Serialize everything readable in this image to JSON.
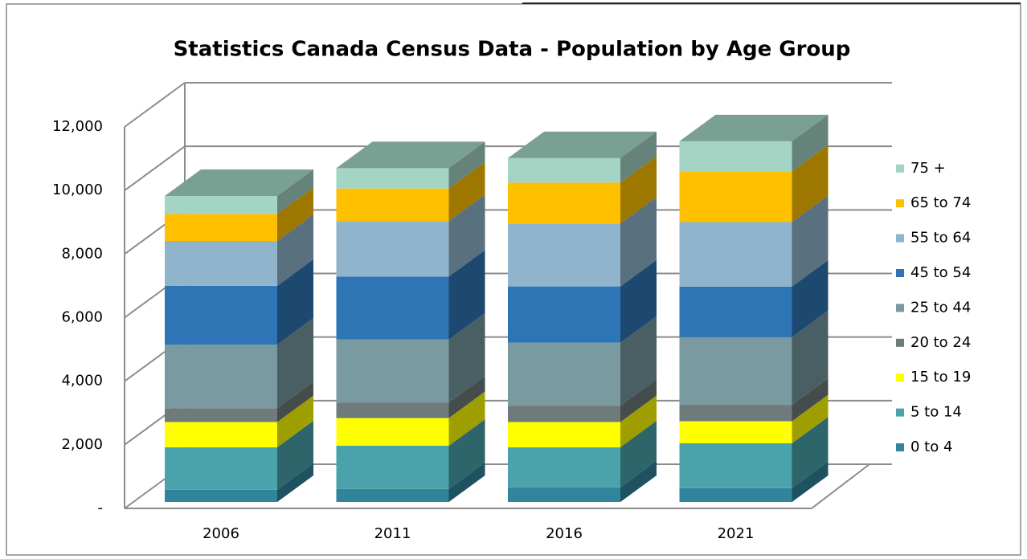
{
  "chart_data": {
    "type": "bar3d_stacked",
    "title": "Statistics Canada Census Data - Population by Age Group",
    "categories": [
      "2006",
      "2011",
      "2016",
      "2021"
    ],
    "series": [
      {
        "name": "0 to 4",
        "color": "#31849b",
        "values": [
          385,
          410,
          460,
          435
        ]
      },
      {
        "name": "5 to 14",
        "color": "#4aa3ab",
        "values": [
          1335,
          1360,
          1260,
          1410
        ]
      },
      {
        "name": "15 to 19",
        "color": "#ffff00",
        "values": [
          795,
          870,
          795,
          695
        ]
      },
      {
        "name": "20 to 24",
        "color": "#6f7b7b",
        "values": [
          435,
          490,
          515,
          515
        ]
      },
      {
        "name": "25 to 44",
        "color": "#789aa0",
        "values": [
          2000,
          1980,
          1980,
          2130
        ]
      },
      {
        "name": "45 to 54",
        "color": "#2e75b6",
        "values": [
          1850,
          1980,
          1770,
          1590
        ]
      },
      {
        "name": "55 to 64",
        "color": "#8fb4cc",
        "values": [
          1410,
          1745,
          1980,
          2030
        ]
      },
      {
        "name": "65 to 74",
        "color": "#ffc000",
        "values": [
          850,
          1025,
          1285,
          1590
        ]
      },
      {
        "name": "75 +",
        "color": "#a3d4c4",
        "values": [
          565,
          640,
          770,
          950
        ]
      }
    ],
    "ylim": [
      0,
      12000
    ],
    "yticks": [
      {
        "value": 0,
        "label": "-"
      },
      {
        "value": 2000,
        "label": "2,000"
      },
      {
        "value": 4000,
        "label": "4,000"
      },
      {
        "value": 6000,
        "label": "6,000"
      },
      {
        "value": 8000,
        "label": "8,000"
      },
      {
        "value": 10000,
        "label": "10,000"
      },
      {
        "value": 12000,
        "label": "12,000"
      }
    ],
    "grid": true,
    "legend": "right"
  }
}
